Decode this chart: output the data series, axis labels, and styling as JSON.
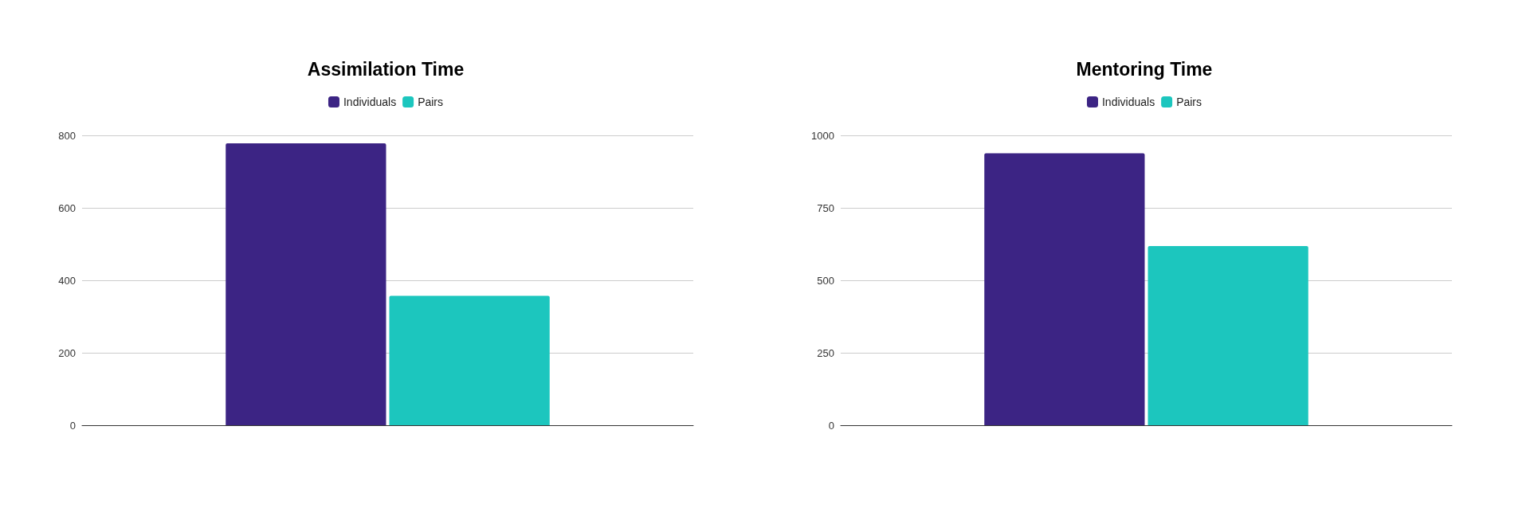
{
  "chart_data": [
    {
      "type": "bar",
      "title": "Assimilation Time",
      "categories": [
        null
      ],
      "series": [
        {
          "name": "Individuals",
          "color": "#3c2484",
          "values": [
            778
          ]
        },
        {
          "name": "Pairs",
          "color": "#1cc6be",
          "values": [
            357
          ]
        }
      ],
      "ylim": [
        0,
        800
      ],
      "yticks": [
        0,
        200,
        400,
        600,
        800
      ],
      "grid": "y",
      "legend": "top"
    },
    {
      "type": "bar",
      "title": "Mentoring Time",
      "categories": [
        null
      ],
      "series": [
        {
          "name": "Individuals",
          "color": "#3c2484",
          "values": [
            938
          ]
        },
        {
          "name": "Pairs",
          "color": "#1cc6be",
          "values": [
            618
          ]
        }
      ],
      "ylim": [
        0,
        1000
      ],
      "yticks": [
        0,
        250,
        500,
        750,
        1000
      ],
      "grid": "y",
      "legend": "top"
    }
  ]
}
